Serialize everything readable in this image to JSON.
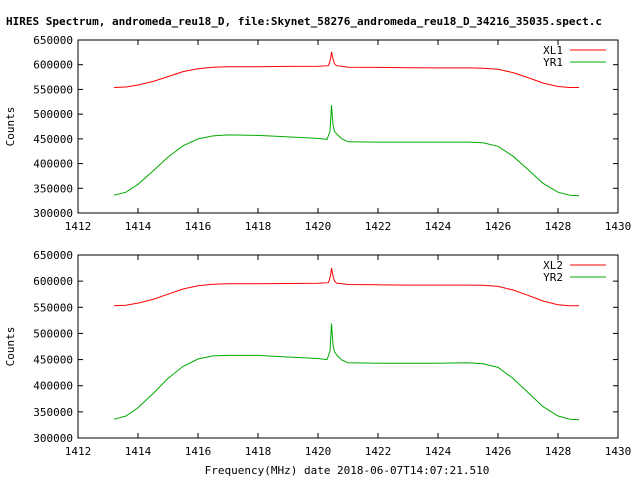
{
  "page": {
    "title": "HIRES Spectrum, andromeda_reu18_D, file:Skynet_58276_andromeda_reu18_D_34216_35035.spect.c",
    "bottom_caption": "Frequency(MHz) date 2018-06-07T14:07:21.510"
  },
  "colors": {
    "series1": "#ff0000",
    "series2": "#00aa00",
    "axis": "#000000"
  },
  "chart_data": [
    {
      "type": "line",
      "title": "",
      "xlabel": "",
      "ylabel": "Counts",
      "xlim": [
        1412,
        1430
      ],
      "ylim": [
        300000,
        650000
      ],
      "xticks": [
        1412,
        1414,
        1416,
        1418,
        1420,
        1422,
        1424,
        1426,
        1428,
        1430
      ],
      "yticks": [
        300000,
        350000,
        400000,
        450000,
        500000,
        550000,
        600000,
        650000
      ],
      "grid": false,
      "legend": "top-right",
      "series": [
        {
          "name": "XL1",
          "color": "#ff0000",
          "x": [
            1413.2,
            1413.6,
            1414.0,
            1414.5,
            1415.0,
            1415.5,
            1416.0,
            1416.5,
            1417.0,
            1418.0,
            1419.0,
            1420.0,
            1420.35,
            1420.42,
            1420.45,
            1420.5,
            1420.55,
            1420.62,
            1420.8,
            1421.0,
            1422.0,
            1423.0,
            1424.0,
            1425.0,
            1425.5,
            1426.0,
            1426.5,
            1427.0,
            1427.5,
            1428.0,
            1428.4,
            1428.7
          ],
          "y": [
            554000,
            555000,
            559000,
            566000,
            576000,
            586000,
            592000,
            595000,
            596000,
            596000,
            596500,
            597000,
            598000,
            612000,
            626000,
            612000,
            602000,
            598000,
            597000,
            595000,
            594500,
            594000,
            593500,
            593500,
            593000,
            591000,
            584000,
            574000,
            563000,
            556000,
            554000,
            554000
          ]
        },
        {
          "name": "YR1",
          "color": "#00aa00",
          "x": [
            1413.2,
            1413.6,
            1414.0,
            1414.5,
            1415.0,
            1415.5,
            1416.0,
            1416.5,
            1417.0,
            1418.0,
            1419.0,
            1420.0,
            1420.3,
            1420.4,
            1420.45,
            1420.5,
            1420.55,
            1420.65,
            1420.8,
            1421.0,
            1422.0,
            1423.0,
            1424.0,
            1425.0,
            1425.5,
            1426.0,
            1426.5,
            1427.0,
            1427.5,
            1428.0,
            1428.4,
            1428.7
          ],
          "y": [
            336000,
            342000,
            358000,
            385000,
            413000,
            436000,
            450000,
            456000,
            458000,
            457000,
            454000,
            451000,
            449000,
            465000,
            518000,
            478000,
            465000,
            458000,
            450000,
            444000,
            443500,
            443500,
            443500,
            443500,
            442000,
            435000,
            415000,
            388000,
            360000,
            342000,
            336000,
            335000
          ]
        }
      ]
    },
    {
      "type": "line",
      "title": "",
      "xlabel": "",
      "ylabel": "Counts",
      "xlim": [
        1412,
        1430
      ],
      "ylim": [
        300000,
        650000
      ],
      "xticks": [
        1412,
        1414,
        1416,
        1418,
        1420,
        1422,
        1424,
        1426,
        1428,
        1430
      ],
      "yticks": [
        300000,
        350000,
        400000,
        450000,
        500000,
        550000,
        600000,
        650000
      ],
      "grid": false,
      "legend": "top-right",
      "series": [
        {
          "name": "XL2",
          "color": "#ff0000",
          "x": [
            1413.2,
            1413.6,
            1414.0,
            1414.5,
            1415.0,
            1415.5,
            1416.0,
            1416.5,
            1417.0,
            1418.0,
            1419.0,
            1420.0,
            1420.35,
            1420.42,
            1420.45,
            1420.5,
            1420.55,
            1420.62,
            1420.8,
            1421.0,
            1422.0,
            1423.0,
            1424.0,
            1425.0,
            1425.5,
            1426.0,
            1426.5,
            1427.0,
            1427.5,
            1428.0,
            1428.4,
            1428.7
          ],
          "y": [
            553000,
            554000,
            558000,
            565000,
            575000,
            585000,
            591000,
            594000,
            595000,
            595000,
            595500,
            596000,
            597000,
            611000,
            625000,
            610000,
            600000,
            596000,
            595000,
            593500,
            593000,
            592500,
            592500,
            592500,
            592000,
            590000,
            583000,
            573000,
            562000,
            555000,
            553000,
            553000
          ]
        },
        {
          "name": "YR2",
          "color": "#00aa00",
          "x": [
            1413.2,
            1413.6,
            1414.0,
            1414.5,
            1415.0,
            1415.5,
            1416.0,
            1416.5,
            1417.0,
            1418.0,
            1419.0,
            1420.0,
            1420.3,
            1420.4,
            1420.45,
            1420.5,
            1420.55,
            1420.65,
            1420.8,
            1421.0,
            1422.0,
            1423.0,
            1424.0,
            1425.0,
            1425.5,
            1426.0,
            1426.5,
            1427.0,
            1427.5,
            1428.0,
            1428.4,
            1428.7
          ],
          "y": [
            336000,
            342000,
            358000,
            385000,
            414000,
            437000,
            451000,
            457000,
            458000,
            458000,
            455000,
            452000,
            450000,
            466000,
            519000,
            478000,
            465000,
            457000,
            449000,
            444000,
            443000,
            443000,
            443000,
            444000,
            442000,
            435000,
            414000,
            387000,
            360000,
            342000,
            336000,
            335000
          ]
        }
      ]
    }
  ]
}
